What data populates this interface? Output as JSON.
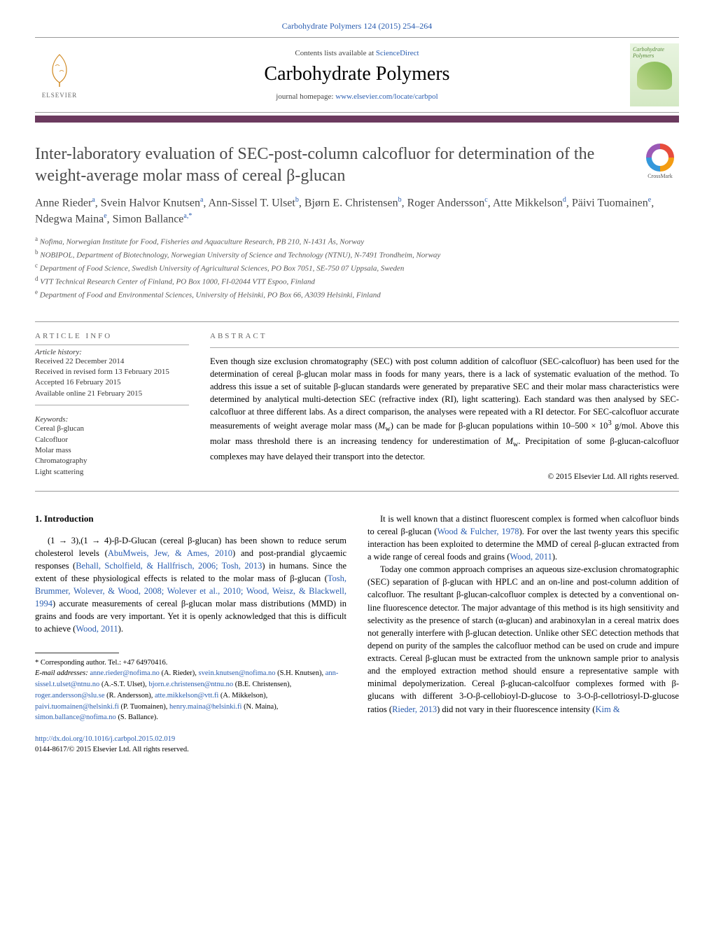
{
  "journal_ref": {
    "text": "Carbohydrate Polymers 124 (2015) 254–264",
    "link_text": "Carbohydrate Polymers",
    "link_color": "#2a5db0"
  },
  "header": {
    "contents_prefix": "Contents lists available at ",
    "contents_link": "ScienceDirect",
    "journal_title": "Carbohydrate Polymers",
    "homepage_prefix": "journal homepage: ",
    "homepage_link": "www.elsevier.com/locate/carbpol",
    "elsevier_label": "ELSEVIER",
    "cover_title": "Carbohydrate Polymers"
  },
  "accent_color": "#6b3a5e",
  "article": {
    "title": "Inter-laboratory evaluation of SEC-post-column calcofluor for determination of the weight-average molar mass of cereal β-glucan",
    "crossmark_label": "CrossMark",
    "authors_html": "Anne Rieder<sup>a</sup>, Svein Halvor Knutsen<sup>a</sup>, Ann-Sissel T. Ulset<sup>b</sup>, Bjørn E. Christensen<sup>b</sup>, Roger Andersson<sup>c</sup>, Atte Mikkelson<sup>d</sup>, Päivi Tuomainen<sup>e</sup>, Ndegwa Maina<sup>e</sup>, Simon Ballance<sup>a,*</sup>",
    "affiliations": [
      {
        "sup": "a",
        "text": "Nofima, Norwegian Institute for Food, Fisheries and Aquaculture Research, PB 210, N-1431 Ås, Norway"
      },
      {
        "sup": "b",
        "text": "NOBIPOL, Department of Biotechnology, Norwegian University of Science and Technology (NTNU), N-7491 Trondheim, Norway"
      },
      {
        "sup": "c",
        "text": "Department of Food Science, Swedish University of Agricultural Sciences, PO Box 7051, SE-750 07 Uppsala, Sweden"
      },
      {
        "sup": "d",
        "text": "VTT Technical Research Center of Finland, PO Box 1000, FI-02044 VTT Espoo, Finland"
      },
      {
        "sup": "e",
        "text": "Department of Food and Environmental Sciences, University of Helsinki, PO Box 66, A3039 Helsinki, Finland"
      }
    ]
  },
  "article_info": {
    "heading": "ARTICLE INFO",
    "history_label": "Article history:",
    "history": [
      "Received 22 December 2014",
      "Received in revised form 13 February 2015",
      "Accepted 16 February 2015",
      "Available online 21 February 2015"
    ],
    "keywords_label": "Keywords:",
    "keywords": [
      "Cereal β-glucan",
      "Calcofluor",
      "Molar mass",
      "Chromatography",
      "Light scattering"
    ]
  },
  "abstract": {
    "heading": "ABSTRACT",
    "text": "Even though size exclusion chromatography (SEC) with post column addition of calcofluor (SEC-calcofluor) has been used for the determination of cereal β-glucan molar mass in foods for many years, there is a lack of systematic evaluation of the method. To address this issue a set of suitable β-glucan standards were generated by preparative SEC and their molar mass characteristics were determined by analytical multi-detection SEC (refractive index (RI), light scattering). Each standard was then analysed by SEC-calcofluor at three different labs. As a direct comparison, the analyses were repeated with a RI detector. For SEC-calcofluor accurate measurements of weight average molar mass (Mw) can be made for β-glucan populations within 10–500 × 10³ g/mol. Above this molar mass threshold there is an increasing tendency for underestimation of Mw. Precipitation of some β-glucan-calcofluor complexes may have delayed their transport into the detector.",
    "copyright": "© 2015 Elsevier Ltd. All rights reserved."
  },
  "body": {
    "section_heading": "1. Introduction",
    "left_p1_prefix": "(1 → 3),(1 → 4)-β-",
    "left_p1_smallcaps": "D",
    "left_p1_mid1": "-Glucan (cereal β-glucan) has been shown to reduce serum cholesterol levels (",
    "left_p1_ref1": "AbuMweis, Jew, & Ames, 2010",
    "left_p1_mid2": ") and post-prandial glycaemic responses (",
    "left_p1_ref2": "Behall, Scholfield, & Hallfrisch, 2006; Tosh, 2013",
    "left_p1_mid3": ") in humans. Since the extent of these physiological effects is related to the molar mass of β-glucan (",
    "left_p1_ref3": "Tosh, Brummer, Wolever, & Wood, 2008; Wolever et al., 2010; Wood, Weisz, & Blackwell, 1994",
    "left_p1_mid4": ") accurate measurements of cereal β-glucan molar mass distributions (MMD) in grains and foods are very important. Yet it is openly acknowledged that this is difficult to achieve (",
    "left_p1_ref4": "Wood, 2011",
    "left_p1_end": ").",
    "right_p1_pre": "It is well known that a distinct fluorescent complex is formed when calcofluor binds to cereal β-glucan (",
    "right_p1_ref1": "Wood & Fulcher, 1978",
    "right_p1_mid": "). For over the last twenty years this specific interaction has been exploited to determine the MMD of cereal β-glucan extracted from a wide range of cereal foods and grains (",
    "right_p1_ref2": "Wood, 2011",
    "right_p1_end": ").",
    "right_p2": "Today one common approach comprises an aqueous size-exclusion chromatographic (SEC) separation of β-glucan with HPLC and an on-line and post-column addition of calcofluor. The resultant β-glucan-calcofluor complex is detected by a conventional on-line fluorescence detector. The major advantage of this method is its high sensitivity and selectivity as the presence of starch (α-glucan) and arabinoxylan in a cereal matrix does not generally interfere with β-glucan detection. Unlike other SEC detection methods that depend on purity of the samples the calcofluor method can be used on crude and impure extracts. Cereal β-glucan must be extracted from the unknown sample prior to analysis and the employed extraction method should ensure a representative sample with minimal depolymerization. Cereal β-glucan-calcolfuor complexes formed with β-glucans with different 3-O-β-cellobioyl-",
    "right_p2_sc1": "D",
    "right_p2_mid": "-glucose to 3-O-β-cellotriosyl-",
    "right_p2_sc2": "D",
    "right_p2_post": "-glucose ratios (",
    "right_p2_ref": "Rieder, 2013",
    "right_p2_tail": ") did not vary in their fluorescence intensity (",
    "right_p2_ref2": "Kim &"
  },
  "footnotes": {
    "corr_label": "* Corresponding author. Tel.: +47 64970416.",
    "email_label": "E-mail addresses:",
    "emails": [
      {
        "addr": "anne.rieder@nofima.no",
        "who": "(A. Rieder),"
      },
      {
        "addr": "svein.knutsen@nofima.no",
        "who": "(S.H. Knutsen),"
      },
      {
        "addr": "ann-sissel.t.ulset@ntnu.no",
        "who": "(A.-S.T. Ulset),"
      },
      {
        "addr": "bjorn.e.christensen@ntnu.no",
        "who": "(B.E. Christensen),"
      },
      {
        "addr": "roger.andersson@slu.se",
        "who": "(R. Andersson),"
      },
      {
        "addr": "atte.mikkelson@vtt.fi",
        "who": "(A. Mikkelson),"
      },
      {
        "addr": "paivi.tuomainen@helsinki.fi",
        "who": "(P. Tuomainen),"
      },
      {
        "addr": "henry.maina@helsinki.fi",
        "who": "(N. Maina),"
      },
      {
        "addr": "simon.ballance@nofima.no",
        "who": "(S. Ballance)."
      }
    ]
  },
  "doi": {
    "url": "http://dx.doi.org/10.1016/j.carbpol.2015.02.019",
    "issn_line": "0144-8617/© 2015 Elsevier Ltd. All rights reserved."
  }
}
